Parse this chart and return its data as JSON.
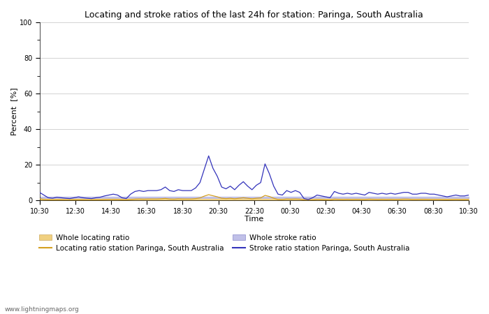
{
  "title": "Locating and stroke ratios of the last 24h for station: Paringa, South Australia",
  "xlabel": "Time",
  "ylabel": "Percent  [%]",
  "ylim": [
    0,
    100
  ],
  "yticks_major": [
    0,
    20,
    40,
    60,
    80,
    100
  ],
  "yticks_minor": [
    10,
    30,
    50,
    70,
    90
  ],
  "background_color": "#ffffff",
  "watermark": "www.lightningmaps.org",
  "x_tick_labels": [
    "10:30",
    "12:30",
    "14:30",
    "16:30",
    "18:30",
    "20:30",
    "22:30",
    "00:30",
    "02:30",
    "04:30",
    "06:30",
    "08:30",
    "10:30"
  ],
  "locating_ratio_color": "#d4a020",
  "stroke_ratio_color": "#3333bb",
  "whole_locating_color": "#f0d080",
  "whole_stroke_color": "#c0c0e8",
  "stroke_ratio_data": [
    4.5,
    3.0,
    1.5,
    1.2,
    1.8,
    1.5,
    1.2,
    1.0,
    1.5,
    2.0,
    1.5,
    1.2,
    1.0,
    1.5,
    1.8,
    2.5,
    3.0,
    3.5,
    3.0,
    1.5,
    1.0,
    3.5,
    5.0,
    5.5,
    5.0,
    5.5,
    5.5,
    5.5,
    6.0,
    7.5,
    5.5,
    5.0,
    6.0,
    5.5,
    5.5,
    5.5,
    7.0,
    10.0,
    17.5,
    25.0,
    18.0,
    13.5,
    7.5,
    6.5,
    8.0,
    6.0,
    8.5,
    10.5,
    8.0,
    6.0,
    8.5,
    10.0,
    20.5,
    15.0,
    8.0,
    3.5,
    3.0,
    5.5,
    4.5,
    5.5,
    4.5,
    1.0,
    0.5,
    1.5,
    3.0,
    2.5,
    2.0,
    1.5,
    5.0,
    4.0,
    3.5,
    4.0,
    3.5,
    4.0,
    3.5,
    3.0,
    4.5,
    4.0,
    3.5,
    4.0,
    3.5,
    4.0,
    3.5,
    4.0,
    4.5,
    4.5,
    3.5,
    3.5,
    4.0,
    4.0,
    3.5,
    3.5,
    3.0,
    2.5,
    2.0,
    2.5,
    3.0,
    2.5,
    2.5,
    3.0
  ],
  "locating_ratio_data": [
    1.0,
    0.5,
    0.3,
    0.2,
    0.3,
    0.3,
    0.2,
    0.2,
    0.3,
    0.3,
    0.3,
    0.2,
    0.2,
    0.3,
    0.3,
    0.4,
    0.5,
    0.5,
    0.5,
    0.3,
    0.2,
    0.5,
    0.7,
    0.8,
    0.7,
    0.8,
    0.8,
    0.8,
    0.9,
    1.1,
    0.8,
    0.7,
    0.9,
    0.8,
    0.8,
    0.8,
    1.0,
    1.4,
    2.4,
    3.2,
    2.6,
    2.0,
    1.2,
    1.0,
    1.2,
    0.9,
    1.2,
    1.5,
    1.2,
    0.9,
    1.2,
    1.4,
    2.8,
    2.2,
    1.2,
    0.5,
    0.5,
    0.8,
    0.7,
    0.8,
    0.7,
    0.2,
    0.1,
    0.2,
    0.5,
    0.4,
    0.3,
    0.2,
    0.7,
    0.6,
    0.5,
    0.6,
    0.5,
    0.6,
    0.5,
    0.5,
    0.7,
    0.6,
    0.5,
    0.6,
    0.5,
    0.6,
    0.5,
    0.6,
    0.7,
    0.7,
    0.5,
    0.5,
    0.6,
    0.6,
    0.5,
    0.5,
    0.5,
    0.4,
    0.3,
    0.4,
    0.5,
    0.4,
    0.4,
    0.5
  ],
  "whole_stroke_data": [
    2.0,
    2.0,
    2.0,
    2.0,
    2.0,
    2.0,
    2.0,
    2.0,
    2.0,
    2.0,
    2.0,
    2.0,
    2.0,
    2.0,
    2.0,
    2.0,
    2.0,
    2.0,
    2.0,
    2.0,
    2.0,
    2.0,
    2.0,
    2.0,
    2.0,
    2.0,
    2.0,
    2.0,
    2.0,
    2.0,
    2.0,
    2.0,
    2.0,
    2.0,
    2.0,
    2.0,
    2.0,
    2.0,
    2.0,
    2.0,
    2.0,
    2.0,
    2.0,
    2.0,
    2.0,
    2.0,
    2.0,
    2.0,
    2.0,
    2.0,
    2.0,
    2.0,
    2.0,
    2.0,
    2.0,
    2.0,
    2.0,
    2.0,
    2.0,
    2.0,
    2.0,
    2.0,
    2.0,
    2.0,
    2.0,
    2.0,
    2.0,
    2.0,
    2.0,
    2.0,
    2.0,
    2.0,
    2.0,
    2.0,
    2.0,
    2.0,
    2.0,
    2.0,
    2.0,
    2.0,
    2.0,
    2.0,
    2.0,
    2.0,
    2.0,
    2.0,
    2.0,
    2.0,
    2.0,
    2.0,
    2.0,
    2.0,
    2.0,
    2.0,
    2.0,
    2.0,
    2.0,
    2.0,
    2.0,
    2.0
  ],
  "whole_locating_data": [
    0.8,
    0.8,
    0.8,
    0.8,
    0.8,
    0.8,
    0.8,
    0.8,
    0.8,
    0.8,
    0.8,
    0.8,
    0.8,
    0.8,
    0.8,
    0.8,
    0.8,
    0.8,
    0.8,
    0.8,
    0.8,
    0.8,
    0.8,
    0.8,
    0.8,
    0.8,
    0.8,
    0.8,
    0.8,
    0.8,
    0.8,
    0.8,
    0.8,
    0.8,
    0.8,
    0.8,
    0.8,
    0.8,
    0.8,
    0.8,
    0.8,
    0.8,
    0.8,
    0.8,
    0.8,
    0.8,
    0.8,
    0.8,
    0.8,
    0.8,
    0.8,
    0.8,
    0.8,
    0.8,
    0.8,
    0.8,
    0.8,
    0.8,
    0.8,
    0.8,
    0.8,
    0.8,
    0.8,
    0.8,
    0.8,
    0.8,
    0.8,
    0.8,
    0.8,
    0.8,
    0.8,
    0.8,
    0.8,
    0.8,
    0.8,
    0.8,
    0.8,
    0.8,
    0.8,
    0.8,
    0.8,
    0.8,
    0.8,
    0.8,
    0.8,
    0.8,
    0.8,
    0.8,
    0.8,
    0.8,
    0.8,
    0.8,
    0.8,
    0.8,
    0.8,
    0.8,
    0.8,
    0.8,
    0.8,
    0.8
  ]
}
